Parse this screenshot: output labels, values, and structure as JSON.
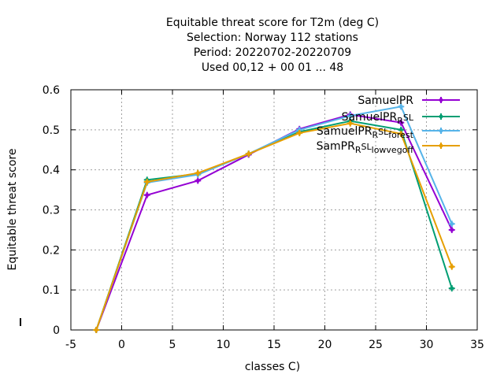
{
  "chart_data": {
    "type": "line",
    "title_lines": [
      "Equitable threat score  for T2m (deg C)",
      "Selection: Norway    112 stations",
      "Period: 20220702-20220709",
      "Used  00,12  + 00 01 ... 48"
    ],
    "xlabel": "classes C)",
    "ylabel": "Equitable threat score",
    "xlim": [
      -5,
      35
    ],
    "ylim": [
      0,
      0.6
    ],
    "xticks": [
      -5,
      0,
      5,
      10,
      15,
      20,
      25,
      30,
      35
    ],
    "yticks": [
      0,
      0.1,
      0.2,
      0.3,
      0.4,
      0.5,
      0.6
    ],
    "ytick_labels": [
      "0",
      "0.1",
      "0.2",
      "0.3",
      "0.4",
      "0.5",
      "0.6"
    ],
    "grid": true,
    "legend_position": "top-right",
    "x": [
      -2.5,
      2.5,
      7.5,
      12.5,
      17.5,
      22.5,
      27.5,
      32.5
    ],
    "series": [
      {
        "name": "SamuelPR",
        "color": "#9400d3",
        "values": [
          0.0,
          0.337,
          0.373,
          0.438,
          0.502,
          0.538,
          0.518,
          0.25
        ]
      },
      {
        "name": "SamuelPR_R_SL",
        "name_parts": [
          "SamuelPR",
          "R",
          "SL"
        ],
        "color": "#009e73",
        "values": [
          0.0,
          0.375,
          0.39,
          0.44,
          0.495,
          0.522,
          0.5,
          0.104
        ]
      },
      {
        "name": "SamuelPR_R_SL_forest",
        "name_parts": [
          "SamuelPR",
          "R",
          "SL",
          "forest"
        ],
        "color": "#56b4e9",
        "values": [
          0.0,
          0.368,
          0.388,
          0.44,
          0.5,
          0.535,
          0.558,
          0.265
        ]
      },
      {
        "name": "SamPR_R_SL_lowvegoff",
        "name_parts": [
          "SamPR",
          "R",
          "SL",
          "lowvegoff"
        ],
        "color": "#e69f00",
        "values": [
          0.0,
          0.37,
          0.392,
          0.44,
          0.492,
          0.516,
          0.49,
          0.158
        ]
      }
    ]
  }
}
